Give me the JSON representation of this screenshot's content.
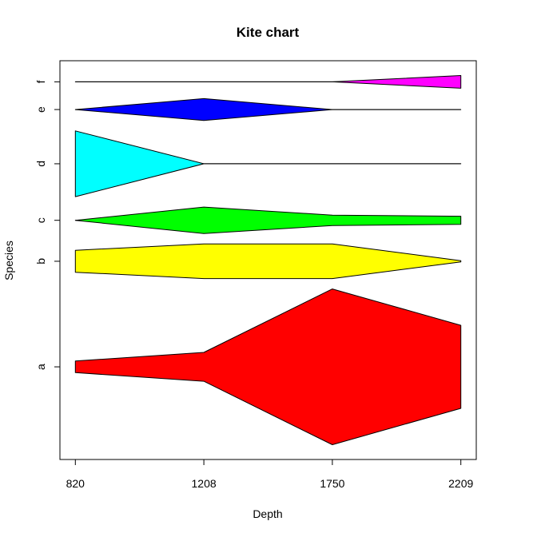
{
  "chart_data": {
    "type": "kite",
    "title": "Kite chart",
    "xlabel": "Depth",
    "ylabel": "Species",
    "x": [
      820,
      1208,
      1750,
      2209
    ],
    "x_tick_labels": [
      "820",
      "1208",
      "1750",
      "2209"
    ],
    "series": [
      {
        "name": "a",
        "widths": [
          1,
          2.5,
          13.5,
          7.2
        ],
        "color": "#ff0000"
      },
      {
        "name": "b",
        "widths": [
          1.9,
          3,
          3,
          0.1
        ],
        "color": "#ffff00"
      },
      {
        "name": "c",
        "widths": [
          0,
          2.3,
          0.9,
          0.7
        ],
        "color": "#00ff00"
      },
      {
        "name": "d",
        "widths": [
          5.7,
          0,
          0,
          0
        ],
        "color": "#00ffff"
      },
      {
        "name": "e",
        "widths": [
          0,
          1.9,
          0,
          0
        ],
        "color": "#0000ff"
      },
      {
        "name": "f",
        "widths": [
          0,
          0,
          0,
          1.1
        ],
        "color": "#ff00ff"
      }
    ]
  }
}
